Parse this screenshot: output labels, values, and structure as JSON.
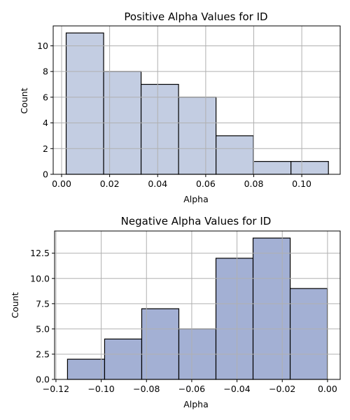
{
  "chart_data": [
    {
      "type": "bar",
      "title": "Positive Alpha Values for ID",
      "xlabel": "Alpha",
      "ylabel": "Count",
      "bar_color": "#c3cde2",
      "bin_edges": [
        0.0019,
        0.0175,
        0.0331,
        0.0487,
        0.0643,
        0.0799,
        0.0955,
        0.1111
      ],
      "values": [
        11,
        8,
        7,
        6,
        3,
        1,
        1
      ],
      "xlim": [
        -0.0035,
        0.116
      ],
      "ylim": [
        0,
        11.55
      ],
      "xticks": [
        0.0,
        0.02,
        0.04,
        0.06,
        0.08,
        0.1
      ],
      "xtick_labels": [
        "0.00",
        "0.02",
        "0.04",
        "0.06",
        "0.08",
        "0.10"
      ],
      "yticks": [
        0,
        2,
        4,
        6,
        8,
        10
      ],
      "ytick_labels": [
        "0",
        "2",
        "4",
        "6",
        "8",
        "10"
      ],
      "grid": true
    },
    {
      "type": "bar",
      "title": "Negative Alpha Values for ID",
      "xlabel": "Alpha",
      "ylabel": "Count",
      "bar_color": "#a3b0d4",
      "bin_edges": [
        -0.1149,
        -0.0985,
        -0.0821,
        -0.0657,
        -0.0493,
        -0.0329,
        -0.0165,
        -0.0001
      ],
      "values": [
        2,
        4,
        7,
        5,
        12,
        14,
        9
      ],
      "xlim": [
        -0.1206,
        0.0056
      ],
      "ylim": [
        0,
        14.7
      ],
      "xticks": [
        -0.12,
        -0.1,
        -0.08,
        -0.06,
        -0.04,
        -0.02,
        0.0
      ],
      "xtick_labels": [
        "−0.12",
        "−0.10",
        "−0.08",
        "−0.06",
        "−0.04",
        "−0.02",
        "0.00"
      ],
      "yticks": [
        0,
        2.5,
        5,
        7.5,
        10,
        12.5
      ],
      "ytick_labels": [
        "0.0",
        "2.5",
        "5.0",
        "7.5",
        "10.0",
        "12.5"
      ],
      "grid": true
    }
  ]
}
